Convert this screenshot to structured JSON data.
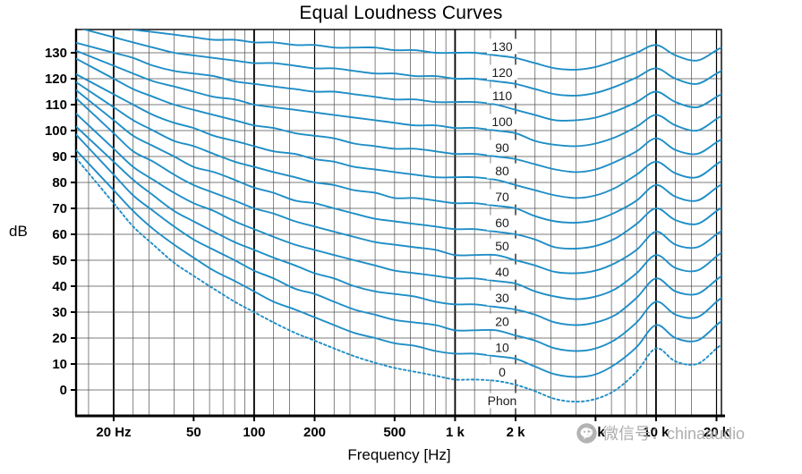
{
  "title": "Equal Loudness Curves",
  "y_axis": {
    "label": "dB",
    "ticks": [
      0,
      10,
      20,
      30,
      40,
      50,
      60,
      70,
      80,
      90,
      100,
      110,
      120,
      130
    ]
  },
  "x_axis": {
    "label": "Frequency [Hz]",
    "ticks": {
      "values": [
        20,
        50,
        100,
        200,
        500,
        1000,
        2000,
        5000,
        10000,
        20000
      ],
      "labels": [
        "20 Hz",
        "50",
        "100",
        "200",
        "500",
        "1 k",
        "2 k",
        "5 k",
        "10 k",
        "20 k"
      ]
    }
  },
  "watermark": {
    "text": "微信号：chinaaudio",
    "icon": "wechat-icon"
  },
  "colors": {
    "curve": "#1f8ec6",
    "grid": "#4f4f4f",
    "axis": "#000000",
    "curve_label": "#1c1c1c",
    "watermark": "#a8a8a8"
  },
  "chart_data": {
    "type": "line",
    "title": "Equal Loudness Curves",
    "xlabel": "Frequency [Hz]",
    "ylabel": "dB",
    "x_scale": "log",
    "xlim": [
      13,
      21500
    ],
    "ylim": [
      -10,
      140
    ],
    "grid": true,
    "legend_position": "inline-labels",
    "unit_label": "Phon",
    "frequencies_hz": [
      20,
      25,
      31.5,
      40,
      50,
      63,
      80,
      100,
      125,
      160,
      200,
      250,
      315,
      400,
      500,
      630,
      800,
      1000,
      1250,
      1600,
      2000,
      2500,
      3150,
      4000,
      5000,
      6300,
      8000,
      10000,
      12500,
      16000,
      20000
    ],
    "series": [
      {
        "name": "130",
        "phon": 130,
        "style": "solid",
        "values": [
          141,
          139,
          138,
          137,
          136,
          135,
          135,
          134,
          134,
          133,
          133,
          132,
          132,
          132,
          131,
          131,
          130,
          130,
          130,
          129,
          128,
          126,
          124,
          123.5,
          124.5,
          127,
          130,
          133,
          129,
          127,
          131
        ]
      },
      {
        "name": "120",
        "phon": 120,
        "style": "solid",
        "values": [
          136,
          134,
          132,
          130,
          129,
          128,
          127,
          126,
          126,
          125,
          124,
          124,
          123,
          122,
          122,
          121,
          121,
          120,
          120,
          119,
          118,
          116,
          114,
          113.5,
          114.5,
          117,
          120.5,
          124,
          120,
          118,
          122
        ]
      },
      {
        "name": "110",
        "phon": 110,
        "style": "solid",
        "values": [
          130,
          128,
          125,
          123,
          122,
          121,
          119,
          118,
          117,
          116,
          115,
          115,
          114,
          113,
          112,
          112,
          111,
          111,
          111,
          110,
          108,
          106,
          104,
          104,
          105,
          107.5,
          111,
          115,
          111,
          109,
          113
        ]
      },
      {
        "name": "100",
        "phon": 100,
        "style": "solid",
        "values": [
          125,
          122,
          119,
          117,
          115,
          113,
          112,
          110,
          109,
          108,
          107,
          106,
          105,
          104,
          103,
          102,
          102,
          101,
          101,
          100,
          99,
          96,
          94.5,
          94,
          95,
          97.5,
          101.5,
          106,
          102,
          100,
          104.5
        ]
      },
      {
        "name": "90",
        "phon": 90,
        "style": "solid",
        "values": [
          120,
          116,
          113,
          110,
          108,
          106,
          104,
          102,
          101,
          99,
          98,
          97,
          95,
          94,
          93,
          93,
          92,
          91,
          91,
          90,
          89,
          87,
          85,
          84,
          85,
          88,
          92,
          97,
          92.5,
          91,
          95.5
        ]
      },
      {
        "name": "80",
        "phon": 80,
        "style": "solid",
        "values": [
          114,
          110,
          106,
          103,
          101,
          98,
          96,
          94,
          92,
          91,
          89,
          88,
          86,
          85,
          84,
          83,
          82,
          82,
          82,
          81,
          79,
          77,
          75,
          74,
          75,
          78,
          83,
          88,
          83.5,
          82,
          87
        ]
      },
      {
        "name": "70",
        "phon": 70,
        "style": "solid",
        "values": [
          109,
          104,
          100,
          96,
          94,
          91,
          88,
          86,
          84,
          82,
          80,
          79,
          77,
          76,
          74,
          74,
          73,
          72,
          72,
          71,
          70,
          67,
          65,
          64.5,
          65.5,
          68.5,
          73,
          79,
          74.5,
          73,
          78
        ]
      },
      {
        "name": "60",
        "phon": 60,
        "style": "solid",
        "values": [
          104,
          98,
          94,
          90,
          86,
          84,
          81,
          78,
          76,
          73,
          72,
          70,
          68,
          66,
          65,
          64,
          63,
          62,
          62,
          61,
          60,
          58,
          55,
          54.5,
          55.5,
          58.5,
          64,
          70,
          65.5,
          64,
          69
        ]
      },
      {
        "name": "50",
        "phon": 50,
        "style": "solid",
        "values": [
          99,
          92,
          88,
          83,
          79,
          76,
          73,
          70,
          68,
          65,
          63,
          61,
          59,
          57,
          56,
          55,
          54,
          52,
          52,
          52,
          50,
          48,
          45.5,
          45,
          46,
          49,
          54,
          61,
          56,
          55,
          60
        ]
      },
      {
        "name": "40",
        "phon": 40,
        "style": "solid",
        "values": [
          93,
          86,
          81,
          76,
          72,
          69,
          65,
          62,
          59,
          56,
          54,
          52,
          50,
          48,
          46,
          45,
          44,
          43,
          43,
          42,
          41,
          38,
          36,
          35,
          36,
          39,
          45,
          52,
          47,
          46,
          51.5
        ]
      },
      {
        "name": "30",
        "phon": 30,
        "style": "solid",
        "values": [
          88,
          81,
          75,
          69,
          65,
          61,
          57,
          54,
          51,
          48,
          45,
          43,
          40,
          38,
          37,
          36,
          34,
          33,
          33,
          32,
          31,
          29,
          26,
          25,
          26,
          29,
          35.5,
          43,
          38,
          37,
          42.5
        ]
      },
      {
        "name": "20",
        "phon": 20,
        "style": "solid",
        "values": [
          83,
          75,
          69,
          63,
          58,
          54,
          50,
          46,
          43,
          39,
          37,
          34,
          31,
          29,
          27,
          26,
          25,
          23,
          23,
          23,
          21,
          19,
          16,
          15,
          16,
          19.5,
          26,
          34,
          29,
          28,
          34
        ]
      },
      {
        "name": "10",
        "phon": 10,
        "style": "solid",
        "values": [
          77,
          69,
          62,
          56,
          51,
          46,
          42,
          38,
          34,
          31,
          28,
          25,
          22,
          20,
          18,
          17,
          15,
          14,
          14,
          13,
          12,
          9,
          6,
          5,
          6,
          10,
          16.5,
          25,
          20,
          19,
          25
        ]
      },
      {
        "name": "0",
        "phon": 0,
        "style": "dotted",
        "values": [
          72,
          63,
          56,
          49,
          44,
          39,
          34,
          30,
          26,
          22,
          19,
          16,
          13,
          10.5,
          8.5,
          7,
          5.5,
          4,
          4,
          3.5,
          2,
          -0.5,
          -3.5,
          -4.5,
          -3.5,
          0,
          7,
          16,
          11,
          10,
          16
        ]
      }
    ]
  }
}
